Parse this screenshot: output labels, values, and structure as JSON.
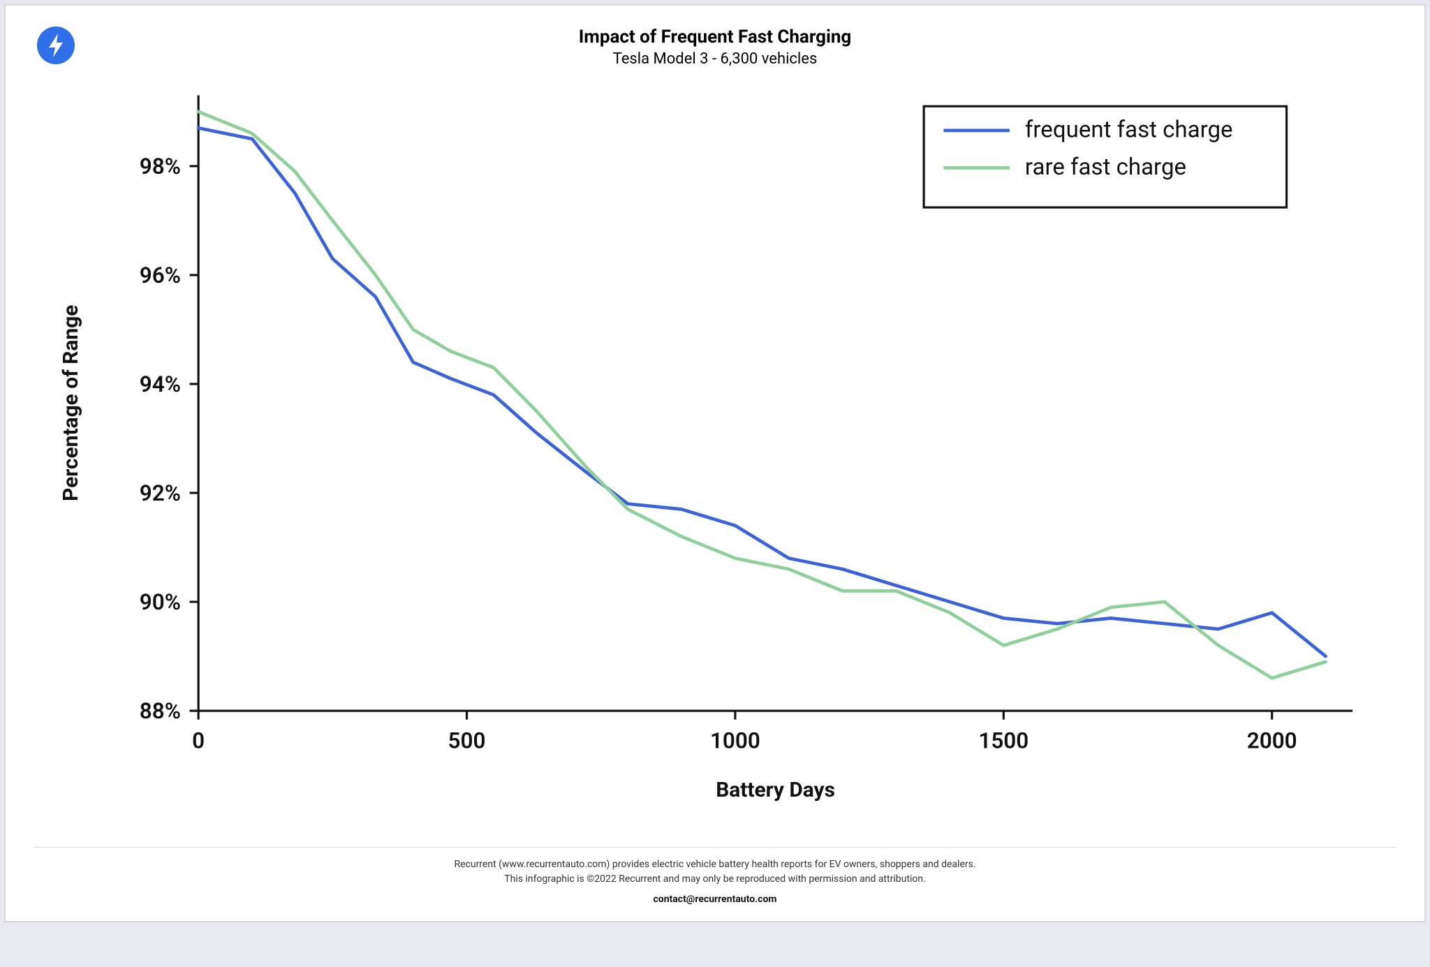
{
  "logo": {
    "bg_color": "#2f6fe8",
    "bolt_color": "#ffffff"
  },
  "title": "Impact of Frequent Fast Charging",
  "subtitle": "Tesla Model 3 - 6,300 vehicles",
  "title_fontsize": 26,
  "subtitle_fontsize": 22,
  "chart": {
    "type": "line",
    "background_color": "#ffffff",
    "axis_color": "#111111",
    "axis_width": 2,
    "tick_fontsize": 20,
    "tick_fontweight": 600,
    "label_fontsize": 19,
    "label_fontweight": 700,
    "xlabel": "Battery Days",
    "ylabel": "Percentage of Range",
    "xlim": [
      0,
      2150
    ],
    "ylim": [
      88,
      99.3
    ],
    "xticks": [
      0,
      500,
      1000,
      1500,
      2000
    ],
    "yticks": [
      88,
      90,
      92,
      94,
      96,
      98
    ],
    "ytick_suffix": "%",
    "line_width": 3,
    "series": [
      {
        "name": "frequent fast charge",
        "color": "#3b62d8",
        "x": [
          0,
          100,
          180,
          250,
          330,
          400,
          470,
          550,
          630,
          720,
          800,
          900,
          1000,
          1100,
          1200,
          1300,
          1400,
          1500,
          1600,
          1700,
          1800,
          1900,
          2000,
          2100
        ],
        "y": [
          98.7,
          98.5,
          97.5,
          96.3,
          95.6,
          94.4,
          94.1,
          93.8,
          93.1,
          92.4,
          91.8,
          91.7,
          91.4,
          90.8,
          90.6,
          90.3,
          90.0,
          89.7,
          89.6,
          89.7,
          89.6,
          89.5,
          89.8,
          89.0
        ]
      },
      {
        "name": "rare fast charge",
        "color": "#8fcf9b",
        "x": [
          0,
          100,
          180,
          250,
          330,
          400,
          470,
          550,
          630,
          720,
          800,
          900,
          1000,
          1100,
          1200,
          1300,
          1400,
          1500,
          1600,
          1700,
          1800,
          1900,
          2000,
          2100
        ],
        "y": [
          99.0,
          98.6,
          97.9,
          97.0,
          96.0,
          95.0,
          94.6,
          94.3,
          93.5,
          92.5,
          91.7,
          91.2,
          90.8,
          90.6,
          90.2,
          90.2,
          89.8,
          89.2,
          89.5,
          89.9,
          90.0,
          89.2,
          88.6,
          88.9
        ]
      }
    ],
    "legend": {
      "border_color": "#111111",
      "border_width": 2,
      "bg_color": "#ffffff",
      "fontsize": 21,
      "position": "top-right",
      "line_length": 60
    }
  },
  "footer": {
    "line1": "Recurrent (www.recurrentauto.com) provides electric vehicle battery health reports for EV owners, shoppers and dealers.",
    "line2": "This infographic is ©2022 Recurrent and may only be reproduced with permission and attribution.",
    "contact": "contact@recurrentauto.com"
  }
}
